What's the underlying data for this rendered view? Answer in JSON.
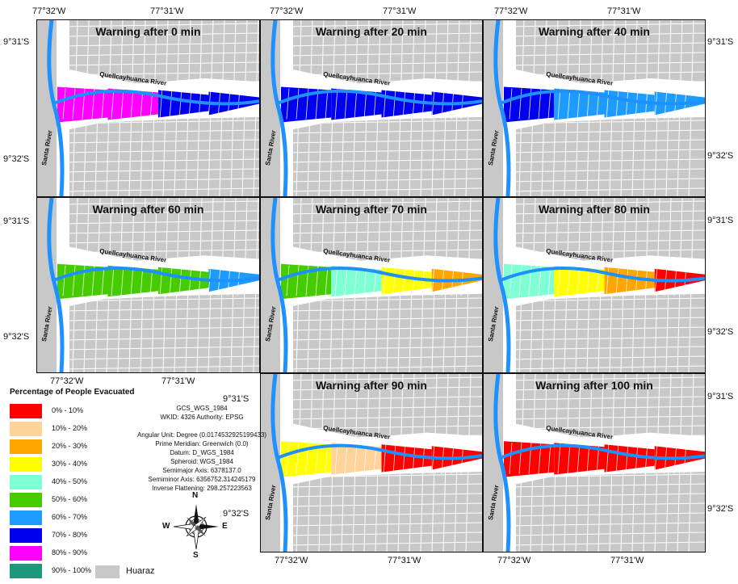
{
  "panels": [
    {
      "title": "Warning after 0 min"
    },
    {
      "title": "Warning after 20 min"
    },
    {
      "title": "Warning after 40 min"
    },
    {
      "title": "Warning after 60 min"
    },
    {
      "title": "Warning after 70 min"
    },
    {
      "title": "Warning after 80 min"
    },
    {
      "title": "Warning after 90 min"
    },
    {
      "title": "Warning after 100 min"
    }
  ],
  "river_labels": {
    "quellcay": "Quellcayhuanca River",
    "santa": "Santa River"
  },
  "coords": {
    "lon_w": "77°32'W",
    "lon_e": "77°31'W",
    "lat_n": "9°31'S",
    "lat_s": "9°32'S"
  },
  "legend": {
    "title": "Percentage of People Evacuated",
    "items": [
      {
        "label": "0% - 10%",
        "color": "#ff0000"
      },
      {
        "label": "10% - 20%",
        "color": "#ffd49a"
      },
      {
        "label": "20% - 30%",
        "color": "#ffa500"
      },
      {
        "label": "30% - 40%",
        "color": "#ffff00"
      },
      {
        "label": "40% - 50%",
        "color": "#7fffd4"
      },
      {
        "label": "50% - 60%",
        "color": "#44cc00"
      },
      {
        "label": "60% - 70%",
        "color": "#1e9bff"
      },
      {
        "label": "70% - 80%",
        "color": "#0000ee"
      },
      {
        "label": "80% - 90%",
        "color": "#ff00ff"
      },
      {
        "label": "90% - 100%",
        "color": "#1a9a7a"
      }
    ],
    "huaraz_label": "Huaraz",
    "huaraz_color": "#c8c8c8"
  },
  "spatial_ref": [
    "GCS_WGS_1984",
    "WKID: 4326 Authority: EPSG",
    "",
    "Angular Unit: Degree (0.0174532925199433)",
    "Prime Meridian: Greenwich (0.0)",
    "Datum: D_WGS_1984",
    "Spheroid: WGS_1984",
    "Semimajor Axis: 6378137.0",
    "Semiminor Axis: 6356752.314245179",
    "Inverse Flattening: 298.257223563"
  ],
  "compass": {
    "n": "N",
    "s": "S",
    "e": "E",
    "w": "W"
  },
  "flood_zones": [
    [
      "#ff00ff",
      "#ff00ff",
      "#0000ee",
      "#0000ee"
    ],
    [
      "#0000ee",
      "#0000ee",
      "#0000ee",
      "#0000ee"
    ],
    [
      "#0000ee",
      "#1e9bff",
      "#1e9bff",
      "#1e9bff"
    ],
    [
      "#44cc00",
      "#44cc00",
      "#44cc00",
      "#1e9bff"
    ],
    [
      "#44cc00",
      "#7fffd4",
      "#ffff00",
      "#ffa500"
    ],
    [
      "#7fffd4",
      "#ffff00",
      "#ffa500",
      "#ff0000"
    ],
    [
      "#ffff00",
      "#ffd49a",
      "#ff0000",
      "#ff0000"
    ],
    [
      "#ff0000",
      "#ff0000",
      "#ff0000",
      "#ff0000"
    ]
  ]
}
